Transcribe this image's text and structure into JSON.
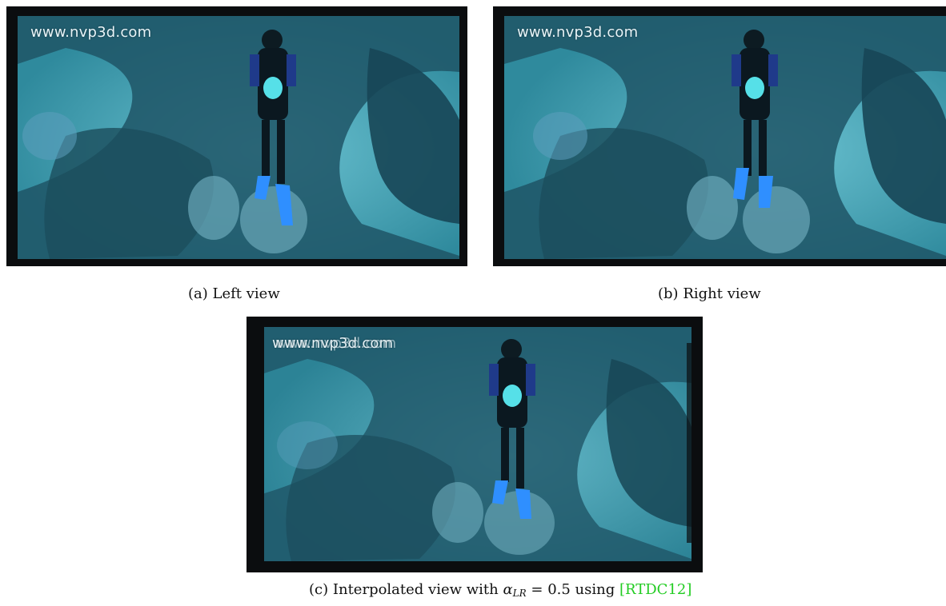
{
  "panels": {
    "left": {
      "watermark": "www.nvp3d.com",
      "caption_label": "(a)",
      "caption_text": "Left view"
    },
    "right": {
      "watermark": "www.nvp3d.com",
      "caption_label": "(b)",
      "caption_text": "Right view"
    },
    "interpolated": {
      "watermark": "www.nvp3d.com",
      "caption_label": "(c)",
      "caption_prefix": "Interpolated view with",
      "alpha_symbol": "α",
      "alpha_subscript": "LR",
      "alpha_value": "= 0.5 using",
      "citation": "[RTDC12]"
    }
  },
  "colors": {
    "water_dark": "#123a4c",
    "water_mid": "#2a7f93",
    "sand": "#5fb3c4",
    "fin": "#2f8fff",
    "tank": "#56e0e8",
    "citation": "#22cc22"
  }
}
